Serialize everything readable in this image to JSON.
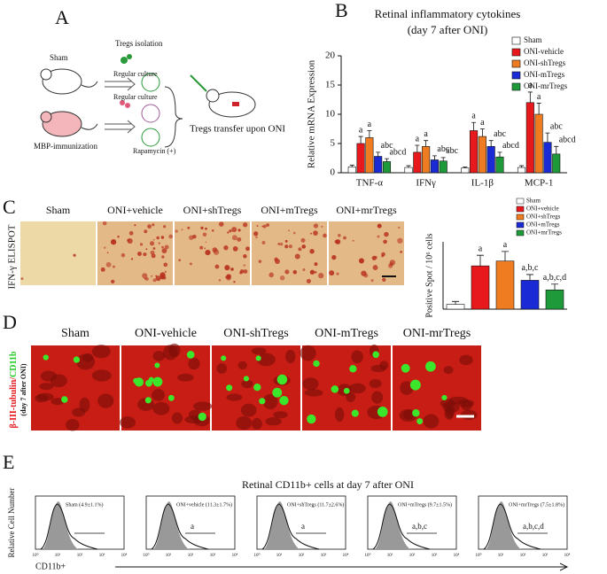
{
  "panel_letters": [
    "A",
    "B",
    "C",
    "D",
    "E"
  ],
  "panel_a": {
    "tregs_isolation": "Tregs isolation",
    "sham": "Sham",
    "regular_culture_1": "Regular culture",
    "regular_culture_2": "Regular culture",
    "mbp": "MBP-immunization",
    "rapamycin": "Rapamycin (+)",
    "transfer": "Tregs transfer upon ONI"
  },
  "chart_data": [
    {
      "type": "bar",
      "title": "Retinal inflammatory cytokines",
      "subtitle": "(day 7 after ONI)",
      "ylabel": "Relative mRNA Expression",
      "categories": [
        "TNF-α",
        "IFNγ",
        "IL-1β",
        "MCP-1"
      ],
      "series": [
        {
          "name": "Sham",
          "color": "#ffffff",
          "values": [
            1,
            0.9,
            0.8,
            0.9
          ],
          "errors": [
            0.3,
            0.3,
            0.2,
            0.3
          ]
        },
        {
          "name": "ONI-vehicle",
          "color": "#e8191c",
          "values": [
            5,
            3.5,
            7.2,
            12
          ],
          "errors": [
            1.2,
            1.2,
            1.4,
            1.8
          ],
          "value_labels": [
            "a",
            "a",
            "a",
            "a"
          ]
        },
        {
          "name": "ONI-shTregs",
          "color": "#f07c22",
          "values": [
            6,
            4.5,
            6.2,
            10
          ],
          "errors": [
            1.2,
            1.0,
            1.3,
            1.9
          ],
          "value_labels": [
            "a",
            "a",
            "a",
            "a"
          ]
        },
        {
          "name": "ONI-mTregs",
          "color": "#1a2bd6",
          "values": [
            2.8,
            2.2,
            4.5,
            5.2
          ],
          "errors": [
            0.7,
            0.7,
            1.0,
            1.6
          ],
          "value_labels": [
            "abc",
            "abc",
            "abc",
            "abc"
          ]
        },
        {
          "name": "ONI-mrTregs",
          "color": "#1f9a3a",
          "values": [
            1.9,
            2.0,
            2.7,
            3.2
          ],
          "errors": [
            0.5,
            0.6,
            0.8,
            1.3
          ],
          "value_labels": [
            "abcd",
            "abc",
            "abcd",
            "abcd"
          ]
        }
      ],
      "ylim": [
        0,
        20
      ],
      "yticks": [
        0,
        5,
        10,
        15,
        20
      ],
      "legend": "upper right"
    },
    {
      "type": "bar",
      "ylabel": "Positive Spot / 10⁶ cells",
      "categories": [
        "Sham",
        "ONI+vehicle",
        "ONI+shTregs",
        "ONI+mTregs",
        "ONI+mrTregs"
      ],
      "colors": [
        "#ffffff",
        "#e8191c",
        "#f07c22",
        "#1a2bd6",
        "#1f9a3a"
      ],
      "values": [
        5,
        45,
        50,
        30,
        20
      ],
      "errors": [
        3,
        11,
        10,
        6,
        6
      ],
      "value_labels": [
        null,
        "a",
        "a",
        "a,b,c",
        "a,b,c,d"
      ],
      "ylim": [
        0,
        70
      ],
      "legend": "upper right"
    }
  ],
  "panel_c": {
    "side_label": "IFN-γ ELISPOT",
    "image_labels": [
      "Sham",
      "ONI+vehicle",
      "ONI+shTregs",
      "ONI+mTregs",
      "ONI+mrTregs"
    ]
  },
  "panel_d": {
    "side_label": [
      "β-III-tubulin/",
      "CD11b"
    ],
    "side_sub": "(day 7 after ONI)",
    "image_labels": [
      "Sham",
      "ONI-vehicle",
      "ONI-shTregs",
      "ONI-mTregs",
      "ONI-mrTregs"
    ]
  },
  "panel_e": {
    "title": "Retinal CD11b+ cells at day 7 after ONI",
    "ylabel": "Relative Cell Number",
    "xlabel": "CD11b+",
    "xtick_labels": [
      "10⁰",
      "10¹",
      "10²",
      "10³",
      "10⁴"
    ],
    "plots": [
      {
        "label": "Sham (4.9±1.1%)"
      },
      {
        "label": "ONI+vehicle (11.3±1.7%)",
        "annotation": "a"
      },
      {
        "label": "ONI+shTregs (11.7±2.6%)",
        "annotation": "a"
      },
      {
        "label": "ONI+mTregs (9.7±1.5%)",
        "annotation": "a,b,c"
      },
      {
        "label": "ONI+mrTregs (7.5±1.8%)",
        "annotation": "a,b,c,d"
      }
    ]
  }
}
